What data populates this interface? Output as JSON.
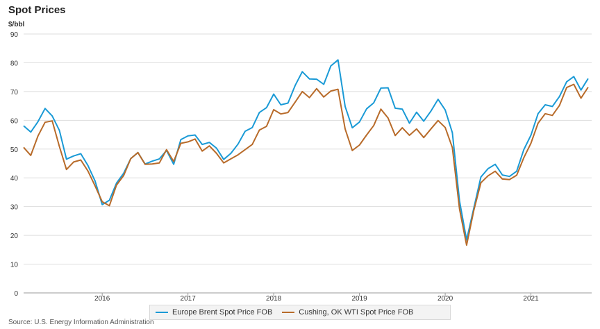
{
  "chart_data": {
    "type": "line",
    "title": "Spot Prices",
    "ylabel": "$/bbl",
    "ylim": [
      0,
      90
    ],
    "yticks": [
      0,
      10,
      20,
      30,
      40,
      50,
      60,
      70,
      80,
      90
    ],
    "xlim": [
      2015.0833,
      2021.7083
    ],
    "xticks": [
      2016,
      2017,
      2018,
      2019,
      2020,
      2021
    ],
    "grid": true,
    "legend_position": "bottom",
    "series": [
      {
        "name": "Europe Brent Spot Price FOB",
        "color": "#1a9ad6",
        "x": [
          2015.0833,
          2015.1667,
          2015.25,
          2015.3333,
          2015.4167,
          2015.5,
          2015.5833,
          2015.6667,
          2015.75,
          2015.8333,
          2015.9167,
          2016.0,
          2016.0833,
          2016.1667,
          2016.25,
          2016.3333,
          2016.4167,
          2016.5,
          2016.5833,
          2016.6667,
          2016.75,
          2016.8333,
          2016.9167,
          2017.0,
          2017.0833,
          2017.1667,
          2017.25,
          2017.3333,
          2017.4167,
          2017.5,
          2017.5833,
          2017.6667,
          2017.75,
          2017.8333,
          2017.9167,
          2018.0,
          2018.0833,
          2018.1667,
          2018.25,
          2018.3333,
          2018.4167,
          2018.5,
          2018.5833,
          2018.6667,
          2018.75,
          2018.8333,
          2018.9167,
          2019.0,
          2019.0833,
          2019.1667,
          2019.25,
          2019.3333,
          2019.4167,
          2019.5,
          2019.5833,
          2019.6667,
          2019.75,
          2019.8333,
          2019.9167,
          2020.0,
          2020.0833,
          2020.1667,
          2020.25,
          2020.3333,
          2020.4167,
          2020.5,
          2020.5833,
          2020.6667,
          2020.75,
          2020.8333,
          2020.9167,
          2021.0,
          2021.0833,
          2021.1667,
          2021.25,
          2021.3333,
          2021.4167,
          2021.5,
          2021.5833,
          2021.6667
        ],
        "values": [
          58.1,
          55.9,
          59.5,
          64.1,
          61.5,
          56.5,
          46.5,
          47.6,
          48.4,
          44.3,
          38.9,
          30.7,
          32.2,
          38.2,
          41.6,
          46.7,
          48.8,
          44.8,
          45.8,
          46.6,
          49.5,
          44.7,
          53.3,
          54.6,
          54.9,
          51.6,
          52.3,
          50.3,
          46.4,
          48.5,
          51.7,
          56.2,
          57.5,
          62.7,
          64.4,
          69.1,
          65.4,
          66.0,
          72.1,
          76.9,
          74.4,
          74.3,
          72.5,
          78.9,
          81.0,
          64.8,
          57.4,
          59.4,
          64.0,
          66.1,
          71.2,
          71.3,
          64.2,
          63.9,
          59.0,
          62.8,
          59.7,
          63.2,
          67.3,
          63.6,
          55.7,
          32.0,
          18.4,
          29.4,
          40.3,
          43.2,
          44.7,
          41.0,
          40.5,
          42.3,
          49.8,
          54.8,
          62.3,
          65.4,
          64.8,
          68.3,
          73.4,
          75.2,
          70.5,
          74.5
        ]
      },
      {
        "name": "Cushing, OK WTI Spot Price FOB",
        "color": "#b86b2a",
        "x": [
          2015.0833,
          2015.1667,
          2015.25,
          2015.3333,
          2015.4167,
          2015.5,
          2015.5833,
          2015.6667,
          2015.75,
          2015.8333,
          2015.9167,
          2016.0,
          2016.0833,
          2016.1667,
          2016.25,
          2016.3333,
          2016.4167,
          2016.5,
          2016.5833,
          2016.6667,
          2016.75,
          2016.8333,
          2016.9167,
          2017.0,
          2017.0833,
          2017.1667,
          2017.25,
          2017.3333,
          2017.4167,
          2017.5,
          2017.5833,
          2017.6667,
          2017.75,
          2017.8333,
          2017.9167,
          2018.0,
          2018.0833,
          2018.1667,
          2018.25,
          2018.3333,
          2018.4167,
          2018.5,
          2018.5833,
          2018.6667,
          2018.75,
          2018.8333,
          2018.9167,
          2019.0,
          2019.0833,
          2019.1667,
          2019.25,
          2019.3333,
          2019.4167,
          2019.5,
          2019.5833,
          2019.6667,
          2019.75,
          2019.8333,
          2019.9167,
          2020.0,
          2020.0833,
          2020.1667,
          2020.25,
          2020.3333,
          2020.4167,
          2020.5,
          2020.5833,
          2020.6667,
          2020.75,
          2020.8333,
          2020.9167,
          2021.0,
          2021.0833,
          2021.1667,
          2021.25,
          2021.3333,
          2021.4167,
          2021.5,
          2021.5833,
          2021.6667
        ],
        "values": [
          50.6,
          47.8,
          54.5,
          59.3,
          59.8,
          50.9,
          42.9,
          45.5,
          46.2,
          42.4,
          37.2,
          31.7,
          30.3,
          37.5,
          40.8,
          46.7,
          48.8,
          44.7,
          44.8,
          45.2,
          49.8,
          45.7,
          52.0,
          52.5,
          53.5,
          49.3,
          51.1,
          48.5,
          45.2,
          46.6,
          48.0,
          49.8,
          51.6,
          56.6,
          57.9,
          63.7,
          62.2,
          62.7,
          66.3,
          70.0,
          67.9,
          71.0,
          68.1,
          70.2,
          70.8,
          57.0,
          49.5,
          51.4,
          54.9,
          58.2,
          63.9,
          60.8,
          54.7,
          57.4,
          54.8,
          57.0,
          54.0,
          57.0,
          59.9,
          57.5,
          50.5,
          29.2,
          16.6,
          28.6,
          38.3,
          40.7,
          42.3,
          39.6,
          39.4,
          40.9,
          47.0,
          52.0,
          59.0,
          62.3,
          61.7,
          65.2,
          71.4,
          72.5,
          67.7,
          71.5
        ]
      }
    ]
  },
  "source_text": "Source: U.S. Energy Information Administration"
}
